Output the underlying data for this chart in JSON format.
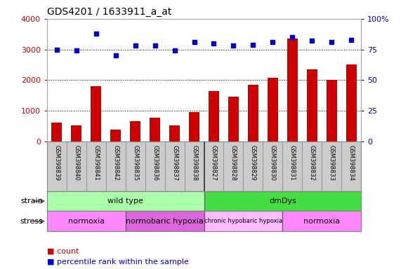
{
  "title": "GDS4201 / 1633911_a_at",
  "samples": [
    "GSM398839",
    "GSM398840",
    "GSM398841",
    "GSM398842",
    "GSM398835",
    "GSM398836",
    "GSM398837",
    "GSM398838",
    "GSM398827",
    "GSM398828",
    "GSM398829",
    "GSM398830",
    "GSM398831",
    "GSM398832",
    "GSM398833",
    "GSM398834"
  ],
  "counts": [
    620,
    520,
    1800,
    380,
    650,
    760,
    520,
    950,
    1630,
    1450,
    1840,
    2080,
    3350,
    2340,
    2010,
    2520
  ],
  "percentile_ranks": [
    75,
    74,
    88,
    70,
    78,
    78,
    74,
    81,
    80,
    78,
    79,
    81,
    85,
    82,
    81,
    83
  ],
  "bar_color": "#cc0000",
  "dot_color": "#0000cc",
  "left_axis_color": "#cc0000",
  "right_axis_color": "#0000cc",
  "ylim_left": [
    0,
    4000
  ],
  "ylim_right": [
    0,
    100
  ],
  "left_ticks": [
    0,
    1000,
    2000,
    3000,
    4000
  ],
  "right_ticks": [
    0,
    25,
    50,
    75,
    100
  ],
  "strain_labels": [
    {
      "label": "wild type",
      "start": 0,
      "end": 8,
      "color": "#aaffaa"
    },
    {
      "label": "dmDys",
      "start": 8,
      "end": 16,
      "color": "#44dd44"
    }
  ],
  "stress_labels": [
    {
      "label": "normoxia",
      "start": 0,
      "end": 4,
      "color": "#ff88ff"
    },
    {
      "label": "normobaric hypoxia",
      "start": 4,
      "end": 8,
      "color": "#dd66dd"
    },
    {
      "label": "chronic hypobaric hypoxia",
      "start": 8,
      "end": 12,
      "color": "#ffbbff"
    },
    {
      "label": "normoxia",
      "start": 12,
      "end": 16,
      "color": "#ff88ff"
    }
  ],
  "plot_bg": "#ffffff",
  "fig_bg": "#ffffff"
}
